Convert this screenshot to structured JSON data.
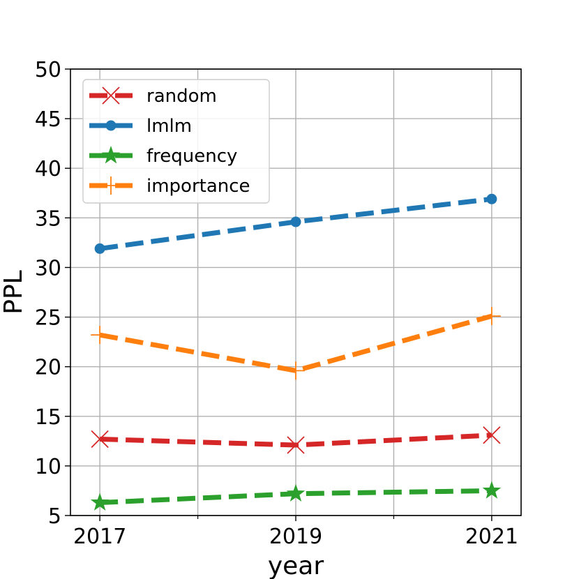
{
  "chart_data": {
    "type": "line",
    "x": [
      2017,
      2019,
      2021
    ],
    "x_tick_labels": [
      "2017",
      "2019",
      "2021"
    ],
    "x_minor_ticks": [
      2018,
      2020
    ],
    "xlim": [
      2016.7,
      2021.3
    ],
    "ylim": [
      5,
      50
    ],
    "y_ticks": [
      5,
      10,
      15,
      20,
      25,
      30,
      35,
      40,
      45,
      50
    ],
    "y_tick_labels": [
      "5",
      "10",
      "15",
      "20",
      "25",
      "30",
      "35",
      "40",
      "45",
      "50"
    ],
    "xlabel": "year",
    "ylabel": "PPL",
    "grid": true,
    "legend_position": "top-left",
    "series": [
      {
        "name": "random",
        "values": [
          12.7,
          12.1,
          13.1
        ],
        "color": "#d62728",
        "marker": "x-marker-icon"
      },
      {
        "name": "lmlm",
        "values": [
          31.9,
          34.6,
          36.9
        ],
        "color": "#1f77b4",
        "marker": "circle-marker-icon"
      },
      {
        "name": "frequency",
        "values": [
          6.3,
          7.2,
          7.5
        ],
        "color": "#2ca02c",
        "marker": "star-marker-icon"
      },
      {
        "name": "importance",
        "values": [
          23.2,
          19.6,
          25.1
        ],
        "color": "#ff7f0e",
        "marker": "plus-marker-icon"
      }
    ]
  }
}
